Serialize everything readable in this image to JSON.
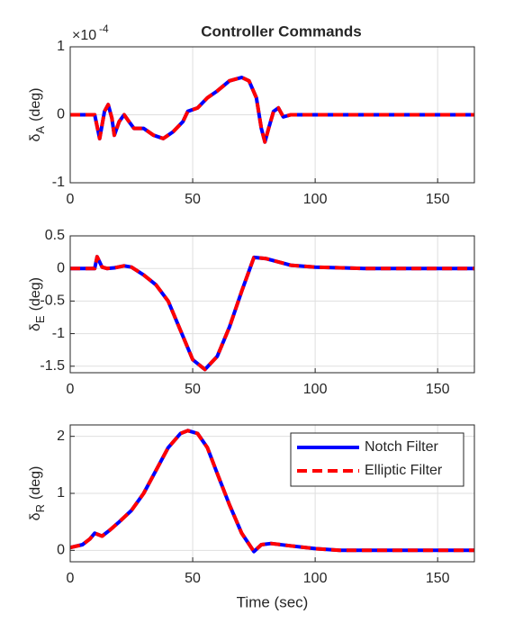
{
  "chart_data": [
    {
      "type": "line",
      "title": "Controller Commands",
      "ylabel_parts": [
        "δ",
        "A",
        "(deg)"
      ],
      "y_exponent": [
        "×10",
        "-4"
      ],
      "x": [
        0,
        10,
        12,
        14,
        15.5,
        17,
        18,
        20,
        22,
        24,
        26,
        30,
        34,
        38,
        42,
        46,
        48,
        52,
        56,
        60,
        65,
        70,
        73,
        76,
        78,
        79.5,
        81,
        83,
        85,
        87,
        90,
        95,
        100,
        165
      ],
      "series": [
        {
          "name": "Notch Filter",
          "color": "#0000ff",
          "dashed": false,
          "values": [
            0,
            0,
            -0.35,
            0.05,
            0.15,
            -0.05,
            -0.3,
            -0.1,
            0,
            -0.1,
            -0.2,
            -0.2,
            -0.3,
            -0.35,
            -0.25,
            -0.1,
            0.05,
            0.1,
            0.25,
            0.35,
            0.5,
            0.55,
            0.5,
            0.25,
            -0.2,
            -0.4,
            -0.2,
            0.05,
            0.1,
            -0.03,
            0,
            0,
            0,
            0
          ]
        },
        {
          "name": "Elliptic Filter",
          "color": "#ff0000",
          "dashed": true,
          "values": [
            0,
            0,
            -0.35,
            0.05,
            0.15,
            -0.05,
            -0.3,
            -0.1,
            0,
            -0.1,
            -0.2,
            -0.2,
            -0.3,
            -0.35,
            -0.25,
            -0.1,
            0.05,
            0.1,
            0.25,
            0.35,
            0.5,
            0.55,
            0.5,
            0.25,
            -0.2,
            -0.4,
            -0.2,
            0.05,
            0.1,
            -0.03,
            0,
            0,
            0,
            0
          ]
        }
      ],
      "xlim": [
        0,
        165
      ],
      "xticks": [
        0,
        50,
        100,
        150
      ],
      "ylim": [
        -1,
        1
      ],
      "yticks": [
        -1,
        0,
        1
      ],
      "grid": true
    },
    {
      "type": "line",
      "ylabel_parts": [
        "δ",
        "E",
        "(deg)"
      ],
      "x": [
        0,
        10,
        11,
        12,
        13,
        15,
        18,
        22,
        25,
        30,
        35,
        40,
        45,
        50,
        55,
        60,
        65,
        70,
        75,
        80,
        90,
        100,
        120,
        165
      ],
      "series": [
        {
          "name": "Notch Filter",
          "color": "#0000ff",
          "dashed": false,
          "values": [
            0,
            0,
            0.18,
            0.1,
            0.02,
            0,
            0.01,
            0.04,
            0.02,
            -0.1,
            -0.25,
            -0.5,
            -0.95,
            -1.4,
            -1.55,
            -1.35,
            -0.9,
            -0.35,
            0.17,
            0.15,
            0.05,
            0.02,
            0,
            0
          ]
        },
        {
          "name": "Elliptic Filter",
          "color": "#ff0000",
          "dashed": true,
          "values": [
            0,
            0,
            0.18,
            0.1,
            0.02,
            0,
            0.01,
            0.04,
            0.02,
            -0.1,
            -0.25,
            -0.5,
            -0.95,
            -1.4,
            -1.55,
            -1.35,
            -0.9,
            -0.35,
            0.17,
            0.15,
            0.05,
            0.02,
            0,
            0
          ]
        }
      ],
      "xlim": [
        0,
        165
      ],
      "xticks": [
        0,
        50,
        100,
        150
      ],
      "ylim": [
        -1.6,
        0.5
      ],
      "yticks": [
        -1.5,
        -1,
        -0.5,
        0,
        0.5
      ],
      "grid": true
    },
    {
      "type": "line",
      "ylabel_parts": [
        "δ",
        "R",
        "(deg)"
      ],
      "xlabel": "Time (sec)",
      "x": [
        0,
        5,
        8,
        10,
        13,
        16,
        20,
        25,
        30,
        35,
        40,
        45,
        48,
        52,
        56,
        60,
        65,
        70,
        75,
        78,
        82,
        90,
        100,
        110,
        120,
        165
      ],
      "series": [
        {
          "name": "Notch Filter",
          "color": "#0000ff",
          "dashed": false,
          "values": [
            0.05,
            0.1,
            0.2,
            0.3,
            0.25,
            0.35,
            0.5,
            0.7,
            1.0,
            1.4,
            1.8,
            2.05,
            2.1,
            2.05,
            1.8,
            1.35,
            0.8,
            0.3,
            -0.02,
            0.1,
            0.12,
            0.08,
            0.03,
            0,
            0,
            0
          ]
        },
        {
          "name": "Elliptic Filter",
          "color": "#ff0000",
          "dashed": true,
          "values": [
            0.05,
            0.1,
            0.2,
            0.3,
            0.25,
            0.35,
            0.5,
            0.7,
            1.0,
            1.4,
            1.8,
            2.05,
            2.1,
            2.05,
            1.8,
            1.35,
            0.8,
            0.3,
            -0.02,
            0.1,
            0.12,
            0.08,
            0.03,
            0,
            0,
            0
          ]
        }
      ],
      "xlim": [
        0,
        165
      ],
      "xticks": [
        0,
        50,
        100,
        150
      ],
      "ylim": [
        -0.2,
        2.2
      ],
      "yticks": [
        0,
        1,
        2
      ],
      "grid": true,
      "legend": "northeast"
    }
  ]
}
